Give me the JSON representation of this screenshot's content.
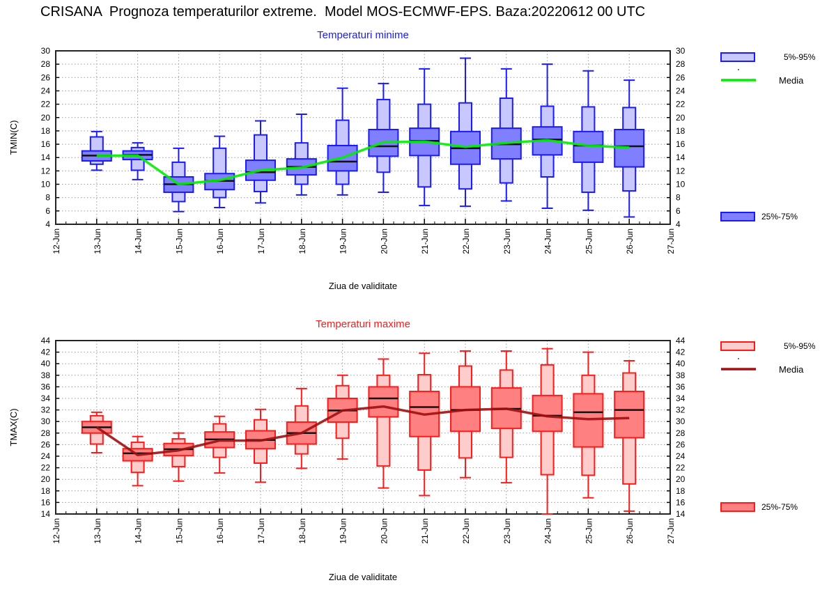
{
  "title": "CRISANA  Prognoza temperaturilor extreme.  Model MOS-ECMWF-EPS. Baza:20220612 00 UTC",
  "chart_data": [
    {
      "type": "boxplot",
      "title": "Temperaturi minime",
      "ylabel": "TMIN(C)",
      "xlabel": "Ziua de validitate",
      "ylim": [
        4,
        30
      ],
      "yticks": [
        4,
        6,
        8,
        10,
        12,
        14,
        16,
        18,
        20,
        22,
        24,
        26,
        28,
        30
      ],
      "xticks": [
        "12-Jun",
        "13-Jun",
        "14-Jun",
        "15-Jun",
        "16-Jun",
        "17-Jun",
        "18-Jun",
        "19-Jun",
        "20-Jun",
        "21-Jun",
        "22-Jun",
        "23-Jun",
        "24-Jun",
        "25-Jun",
        "26-Jun",
        "27-Jun"
      ],
      "legend": {
        "p5_95": "5%-95%",
        "mean": "Media",
        "p25_75": "25%-75%",
        "placement": "right"
      },
      "colors": {
        "light": "#c8c8ff",
        "dark": "#7f7fff",
        "edge": "#1a1aff",
        "mean": "#00ee00",
        "title": "#1a1aff"
      },
      "categories": [
        "13-Jun",
        "14-Jun",
        "15-Jun",
        "16-Jun",
        "17-Jun",
        "18-Jun",
        "19-Jun",
        "20-Jun",
        "21-Jun",
        "22-Jun",
        "23-Jun",
        "24-Jun",
        "25-Jun",
        "26-Jun"
      ],
      "min": [
        12.1,
        10.7,
        5.9,
        6.5,
        7.2,
        8.4,
        8.4,
        8.8,
        6.8,
        6.7,
        7.5,
        6.4,
        6.1,
        5.1
      ],
      "p5": [
        13.0,
        12.1,
        7.4,
        8.0,
        8.9,
        10.0,
        10.0,
        11.8,
        9.6,
        9.3,
        10.2,
        11.1,
        8.8,
        9.0
      ],
      "p25": [
        13.5,
        13.7,
        8.8,
        9.2,
        10.6,
        11.4,
        12.0,
        14.2,
        14.3,
        13.0,
        13.8,
        14.4,
        13.3,
        12.6
      ],
      "median": [
        14.3,
        14.4,
        10.0,
        10.5,
        11.8,
        12.6,
        13.4,
        15.7,
        16.5,
        15.4,
        16.0,
        16.7,
        15.8,
        15.7
      ],
      "p75": [
        15.0,
        15.0,
        11.1,
        11.6,
        13.6,
        13.8,
        15.8,
        18.2,
        18.4,
        17.9,
        18.4,
        18.6,
        17.9,
        18.2
      ],
      "p95": [
        17.1,
        15.5,
        13.3,
        15.4,
        17.4,
        16.2,
        19.6,
        22.7,
        22.0,
        22.2,
        22.9,
        21.7,
        21.6,
        21.5
      ],
      "max": [
        17.9,
        16.2,
        15.4,
        17.2,
        19.5,
        20.5,
        24.4,
        25.1,
        27.3,
        28.9,
        27.3,
        28.0,
        27.0,
        25.6
      ],
      "mean": [
        14.3,
        14.3,
        10.0,
        10.6,
        12.1,
        12.5,
        14.0,
        16.3,
        16.4,
        15.6,
        16.2,
        16.6,
        15.8,
        15.5
      ]
    },
    {
      "type": "boxplot",
      "title": "Temperaturi maxime",
      "ylabel": "TMAX(C)",
      "xlabel": "Ziua de validitate",
      "ylim": [
        14,
        44
      ],
      "yticks": [
        14,
        16,
        18,
        20,
        22,
        24,
        26,
        28,
        30,
        32,
        34,
        36,
        38,
        40,
        42,
        44
      ],
      "xticks": [
        "12-Jun",
        "13-Jun",
        "14-Jun",
        "15-Jun",
        "16-Jun",
        "17-Jun",
        "18-Jun",
        "19-Jun",
        "20-Jun",
        "21-Jun",
        "22-Jun",
        "23-Jun",
        "24-Jun",
        "25-Jun",
        "26-Jun",
        "27-Jun"
      ],
      "legend": {
        "p5_95": "5%-95%",
        "mean": "Media",
        "p25_75": "25%-75%",
        "placement": "right"
      },
      "colors": {
        "light": "#ffcccc",
        "dark": "#ff8080",
        "edge": "#ff1a1a",
        "mean": "#a01010",
        "title": "#ff1a1a"
      },
      "categories": [
        "13-Jun",
        "14-Jun",
        "15-Jun",
        "16-Jun",
        "17-Jun",
        "18-Jun",
        "19-Jun",
        "20-Jun",
        "21-Jun",
        "22-Jun",
        "23-Jun",
        "24-Jun",
        "25-Jun",
        "26-Jun"
      ],
      "min": [
        24.6,
        18.9,
        19.7,
        21.1,
        19.5,
        21.9,
        23.5,
        18.5,
        17.2,
        20.3,
        19.4,
        14.0,
        16.8,
        14.5
      ],
      "p5": [
        26.1,
        21.2,
        22.2,
        23.8,
        22.8,
        24.4,
        27.1,
        22.3,
        21.6,
        23.7,
        23.8,
        20.8,
        20.7,
        19.2
      ],
      "p25": [
        28.0,
        23.2,
        24.1,
        25.5,
        25.3,
        26.1,
        29.9,
        30.8,
        27.4,
        28.3,
        28.8,
        28.3,
        25.6,
        27.2
      ],
      "median": [
        29.0,
        24.5,
        25.2,
        26.9,
        26.8,
        28.0,
        31.9,
        34.0,
        32.5,
        32.0,
        32.2,
        31.0,
        31.6,
        32.0
      ],
      "p75": [
        30.0,
        25.3,
        26.2,
        28.2,
        28.4,
        29.9,
        34.0,
        36.0,
        35.2,
        36.0,
        35.8,
        34.5,
        34.8,
        35.2
      ],
      "p95": [
        31.0,
        26.4,
        27.0,
        29.6,
        30.3,
        32.7,
        36.2,
        38.0,
        38.1,
        39.6,
        38.9,
        39.8,
        38.0,
        38.4
      ],
      "max": [
        31.6,
        27.4,
        28.0,
        30.9,
        32.1,
        35.7,
        38.0,
        40.8,
        41.8,
        42.2,
        42.2,
        42.6,
        42.0,
        40.5
      ],
      "mean": [
        29.0,
        24.2,
        25.0,
        26.7,
        26.7,
        28.0,
        31.9,
        32.6,
        31.2,
        32.0,
        32.2,
        30.9,
        30.4,
        30.6
      ]
    }
  ]
}
